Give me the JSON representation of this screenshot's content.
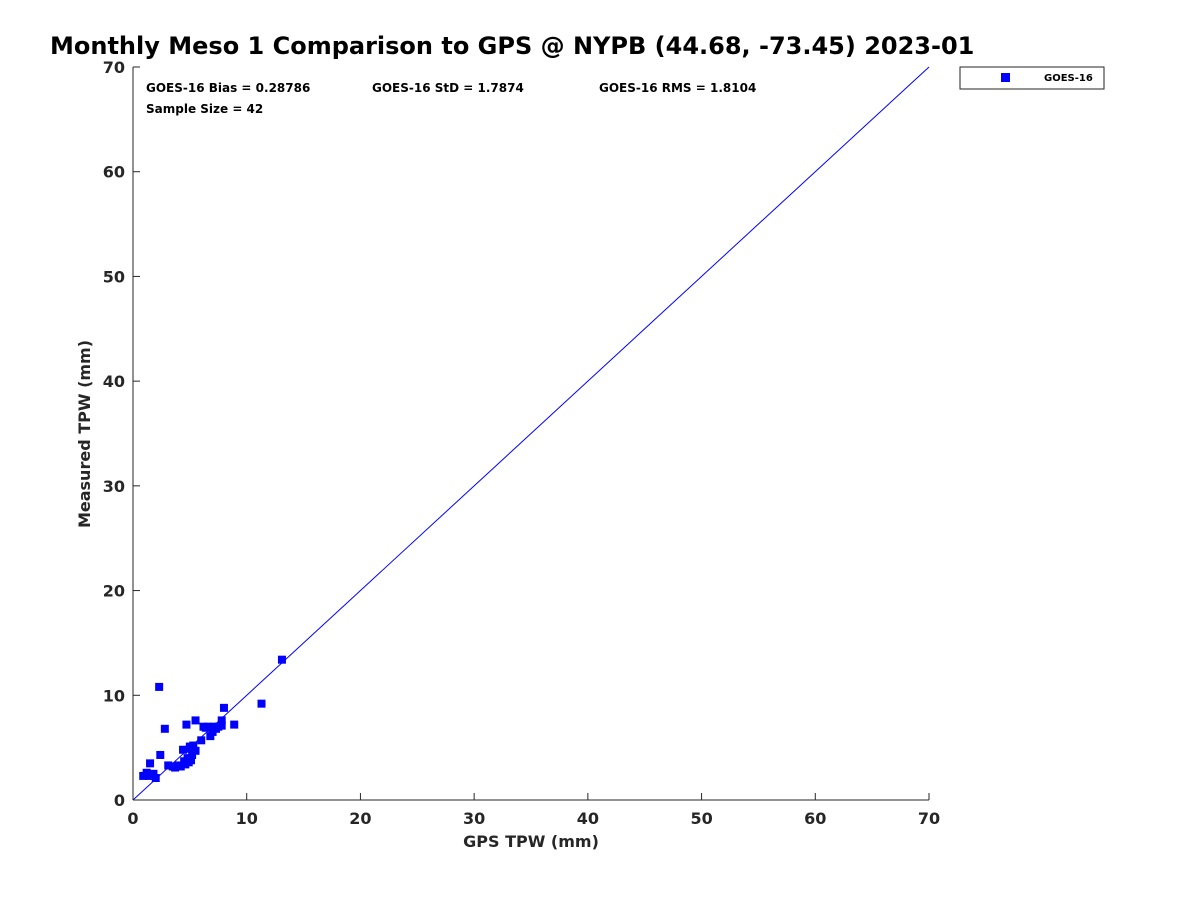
{
  "chart_data": {
    "type": "scatter",
    "title": "Monthly Meso 1 Comparison to GPS @ NYPB (44.68, -73.45) 2023-01",
    "xlabel": "GPS TPW (mm)",
    "ylabel": "Measured TPW (mm)",
    "xlim": [
      0,
      70
    ],
    "ylim": [
      0,
      70
    ],
    "xticks": [
      0,
      10,
      20,
      30,
      40,
      50,
      60,
      70
    ],
    "yticks": [
      0,
      10,
      20,
      30,
      40,
      50,
      60,
      70
    ],
    "grid": false,
    "legend_position": "outside top-right",
    "reference_line": {
      "from": [
        0,
        0
      ],
      "to": [
        70,
        70
      ],
      "color": "#0000ff"
    },
    "stats": {
      "bias": "GOES-16 Bias = 0.28786",
      "std": "GOES-16 StD = 1.7874",
      "rms": "GOES-16 RMS = 1.8104",
      "sample_size": "Sample Size = 42"
    },
    "series": [
      {
        "name": "GOES-16",
        "color": "#0000ff",
        "marker": "square",
        "points": [
          [
            0.9,
            2.3
          ],
          [
            1.2,
            2.6
          ],
          [
            1.4,
            2.3
          ],
          [
            1.5,
            3.5
          ],
          [
            1.8,
            2.5
          ],
          [
            2.0,
            2.1
          ],
          [
            2.3,
            10.8
          ],
          [
            2.4,
            4.3
          ],
          [
            2.8,
            6.8
          ],
          [
            3.1,
            3.3
          ],
          [
            3.5,
            3.2
          ],
          [
            3.7,
            3.1
          ],
          [
            4.0,
            3.3
          ],
          [
            4.2,
            3.2
          ],
          [
            4.4,
            4.8
          ],
          [
            4.5,
            3.7
          ],
          [
            4.6,
            3.4
          ],
          [
            4.7,
            7.2
          ],
          [
            4.8,
            4.0
          ],
          [
            4.9,
            3.6
          ],
          [
            5.0,
            5.1
          ],
          [
            5.1,
            3.8
          ],
          [
            5.2,
            4.3
          ],
          [
            5.3,
            5.2
          ],
          [
            5.5,
            4.7
          ],
          [
            5.5,
            7.6
          ],
          [
            6.0,
            5.7
          ],
          [
            6.2,
            7.0
          ],
          [
            6.6,
            7.0
          ],
          [
            6.8,
            6.1
          ],
          [
            7.0,
            6.5
          ],
          [
            7.1,
            7.0
          ],
          [
            7.3,
            6.8
          ],
          [
            7.5,
            7.0
          ],
          [
            7.8,
            7.1
          ],
          [
            7.8,
            7.6
          ],
          [
            8.0,
            8.8
          ],
          [
            8.9,
            7.2
          ],
          [
            11.3,
            9.2
          ],
          [
            13.1,
            13.4
          ],
          [
            6.4,
            6.9
          ],
          [
            5.0,
            4.9
          ]
        ]
      }
    ]
  }
}
